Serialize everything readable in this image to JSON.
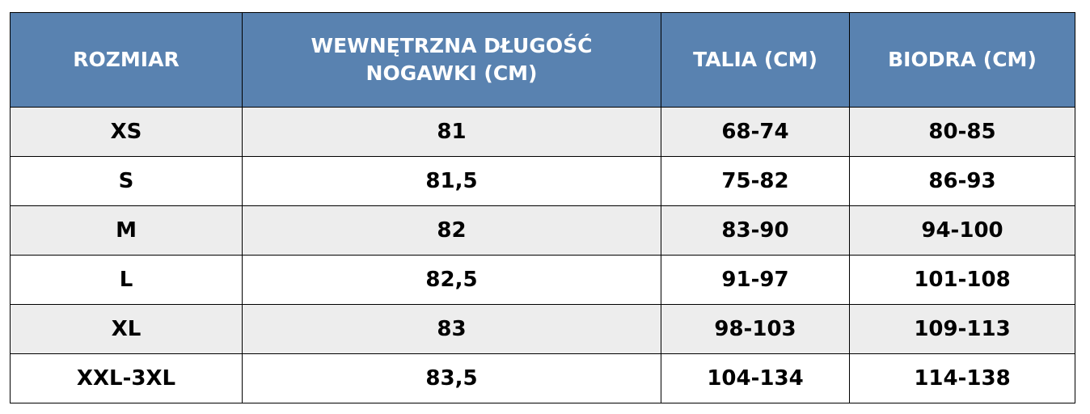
{
  "table": {
    "header_color": "#5982b0",
    "columns": [
      "ROZMIAR",
      "WEWNĘTRZNA DŁUGOŚĆ NOGAWKI (CM)",
      "TALIA (CM)",
      "BIODRA (CM)"
    ],
    "rows": [
      [
        "XS",
        "81",
        "68-74",
        "80-85"
      ],
      [
        "S",
        "81,5",
        "75-82",
        "86-93"
      ],
      [
        "M",
        "82",
        "83-90",
        "94-100"
      ],
      [
        "L",
        "82,5",
        "91-97",
        "101-108"
      ],
      [
        "XL",
        "83",
        "98-103",
        "109-113"
      ],
      [
        "XXL-3XL",
        "83,5",
        "104-134",
        "114-138"
      ]
    ]
  }
}
